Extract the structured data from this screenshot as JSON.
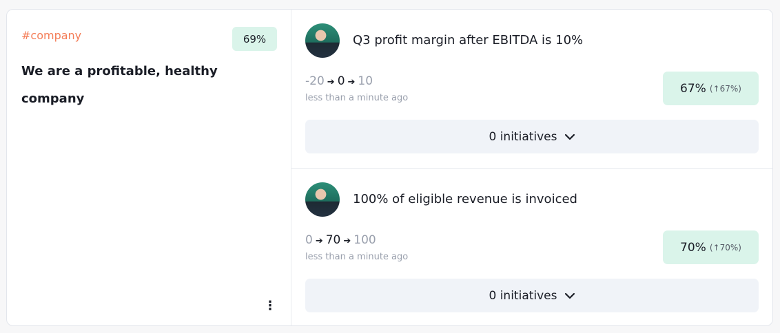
{
  "objective": {
    "tag": "#company",
    "progress": "69%",
    "title": "We are a profitable, healthy company"
  },
  "key_results": [
    {
      "title": "Q3 profit margin after EBITDA is 10%",
      "start": "-20",
      "current": "0",
      "target": "10",
      "updated": "less than a minute ago",
      "progress": "67%",
      "change": "(↑67%)",
      "initiatives": "0 initiatives"
    },
    {
      "title": "100% of eligible revenue is invoiced",
      "start": "0",
      "current": "70",
      "target": "100",
      "updated": "less than a minute ago",
      "progress": "70%",
      "change": "(↑70%)",
      "initiatives": "0 initiatives"
    }
  ],
  "colors": {
    "tag": "#f47c56",
    "progress_bg": "#daf4ea",
    "initiatives_bg": "#f0f3f8"
  }
}
